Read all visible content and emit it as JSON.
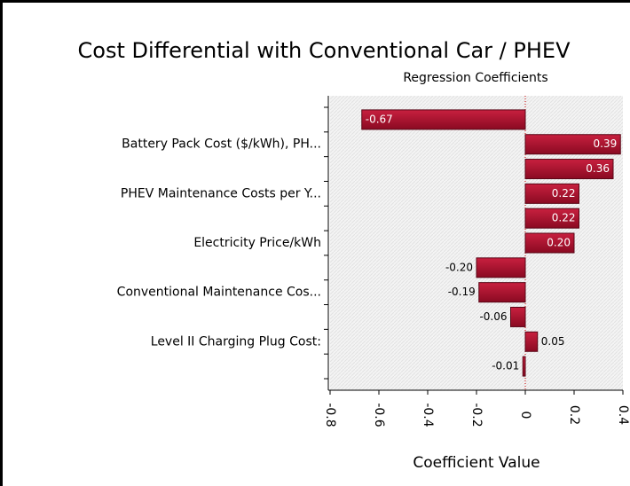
{
  "chart_data": {
    "type": "hbar",
    "title": "Cost Differential with Conventional Car / PHEV",
    "subtitle": "Regression Coefficients",
    "x_label": "Coefficient Value",
    "categories": [
      null,
      "Battery Pack Cost ($/kWh), PH...",
      null,
      "PHEV Maintenance Costs per Y...",
      null,
      "Electricity Price/kWh",
      null,
      "Conventional Maintenance Cos...",
      null,
      "Level II Charging Plug Cost:",
      null
    ],
    "values": [
      -0.67,
      0.39,
      0.36,
      0.22,
      0.22,
      0.2,
      -0.2,
      -0.19,
      -0.06,
      0.05,
      -0.01
    ],
    "value_labels": [
      "-0.67",
      "0.39",
      "0.36",
      "0.22",
      "0.22",
      "0.20",
      "-0.20",
      "-0.19",
      "-0.06",
      "0.05",
      "-0.01"
    ],
    "color": "#a3102e",
    "xlim": [
      -0.8,
      0.4
    ],
    "xticks": [
      -0.8,
      -0.6,
      -0.4,
      -0.2,
      0,
      0.2,
      0.4
    ]
  }
}
